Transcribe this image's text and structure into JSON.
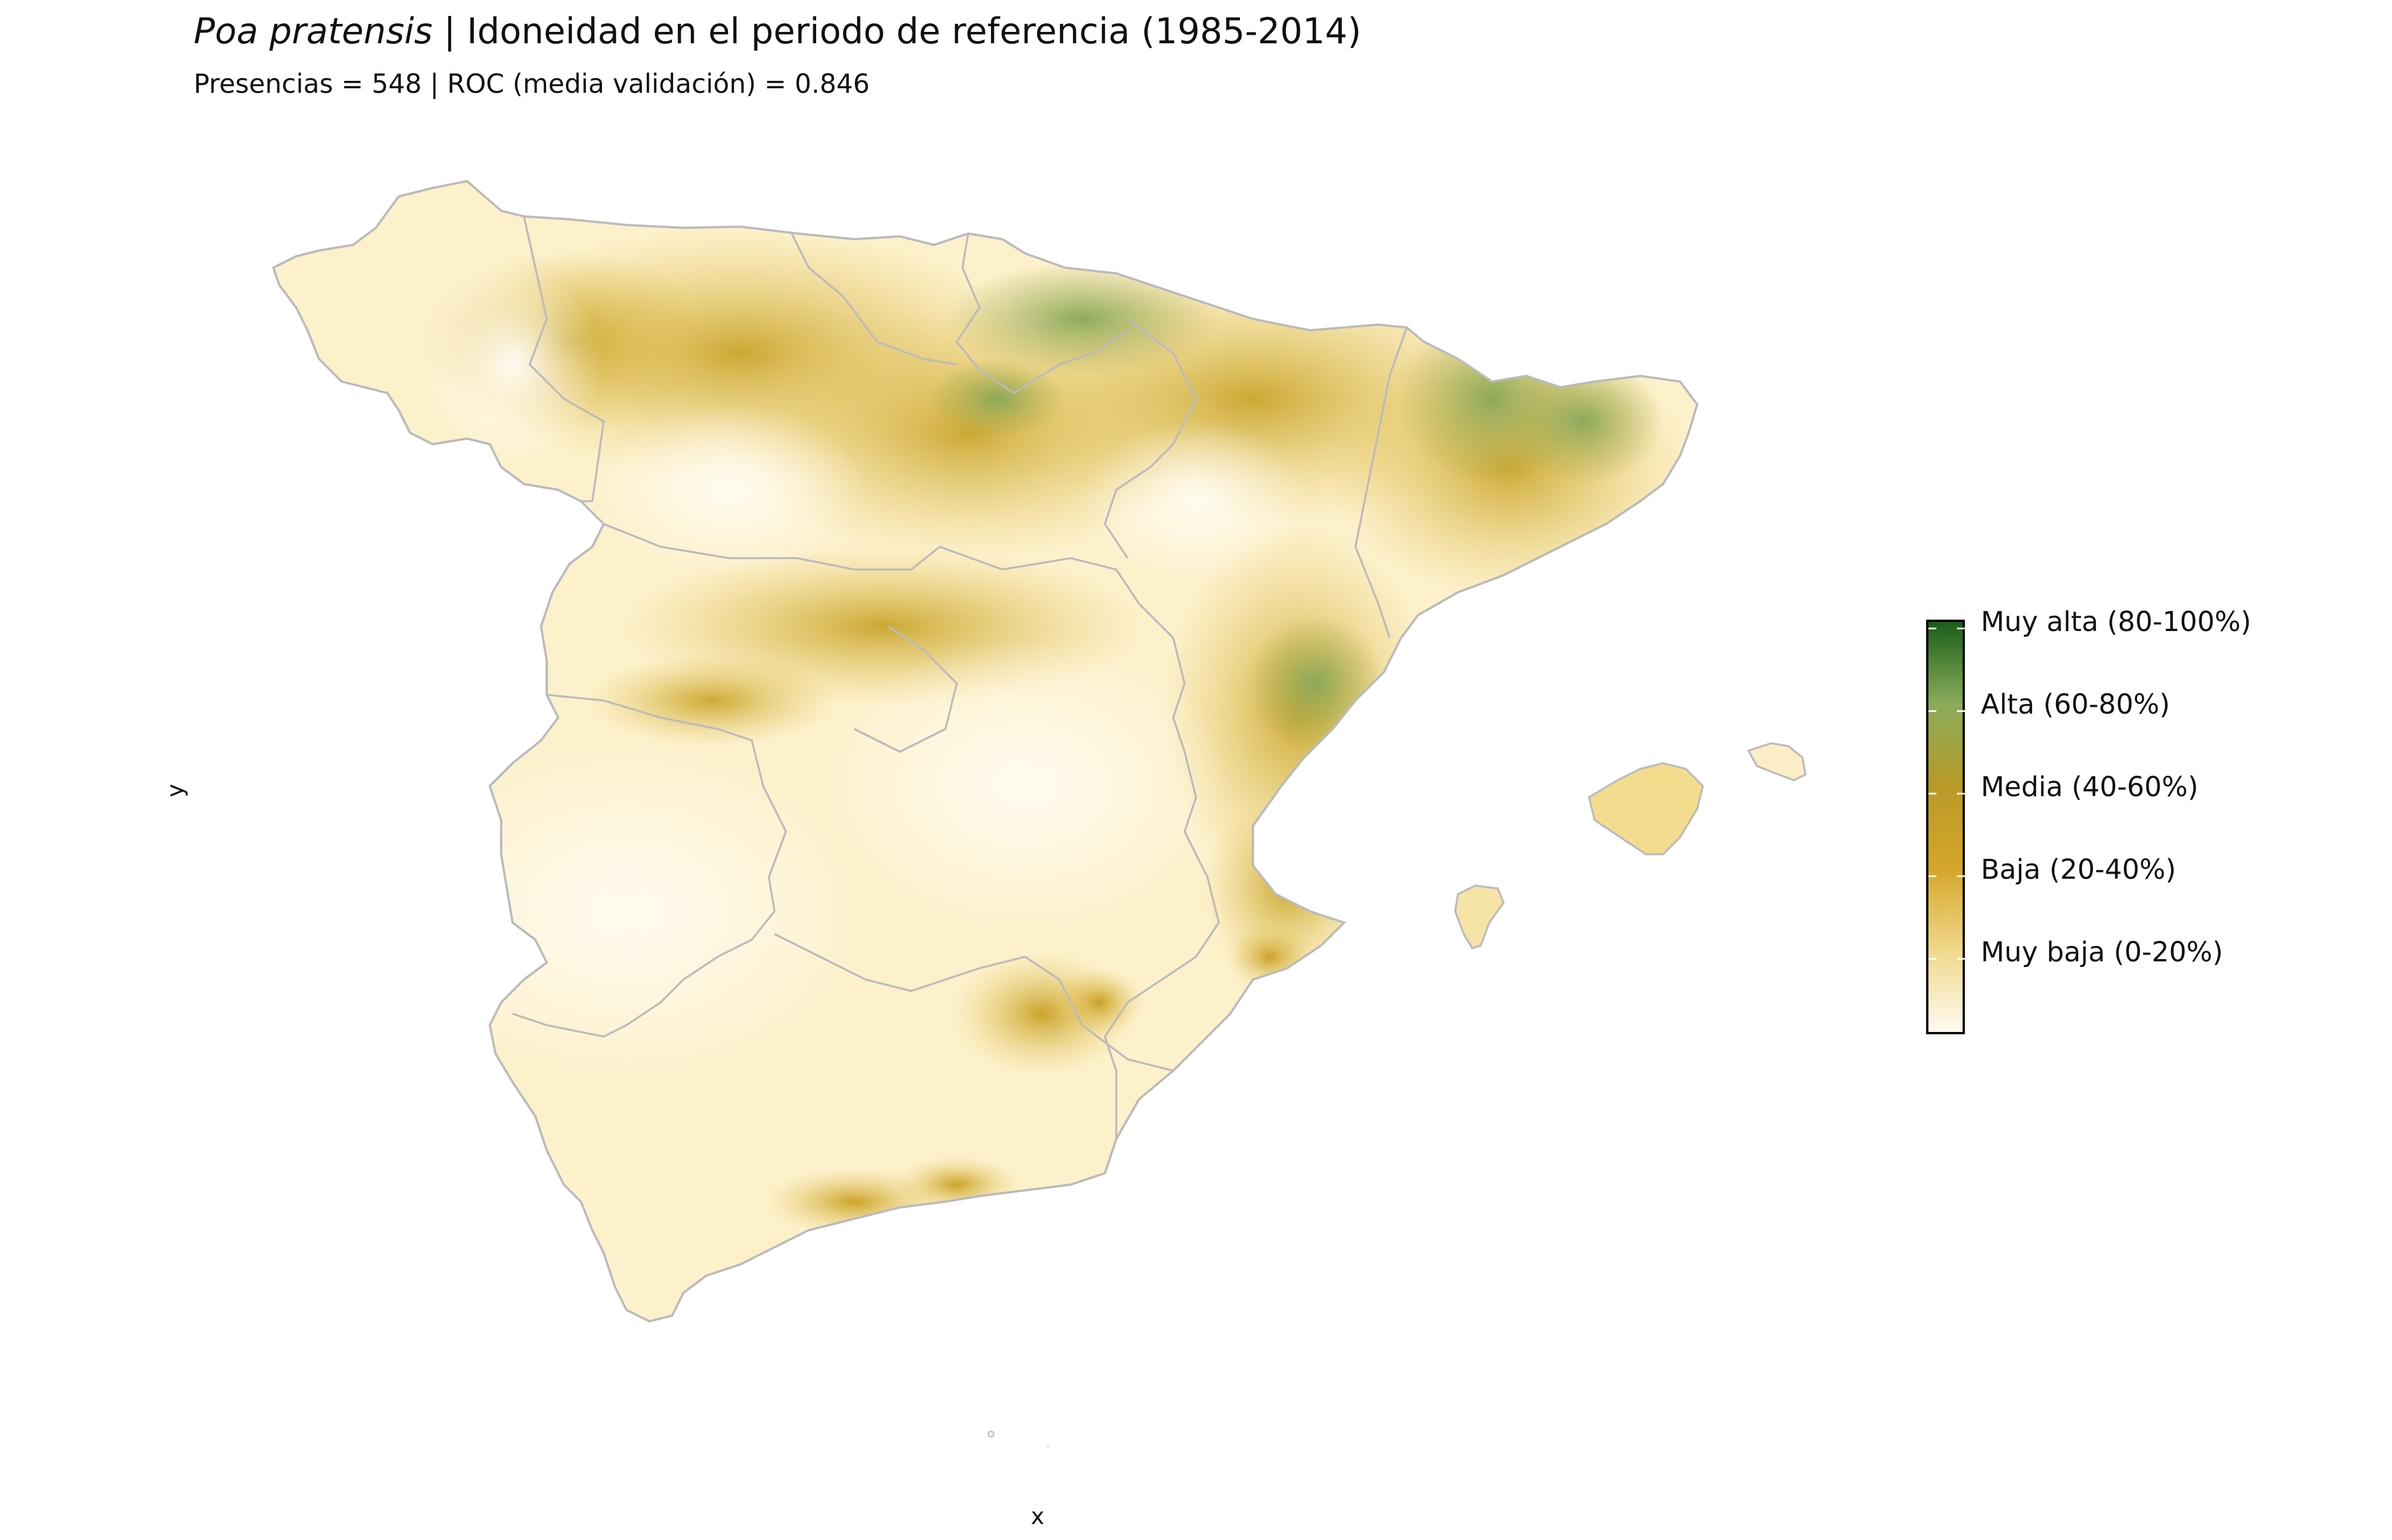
{
  "header": {
    "species": "Poa pratensis",
    "separator": " | ",
    "title_rest": "Idoneidad en el periodo de referencia (1985-2014)",
    "subtitle": "Presencias = 548  |  ROC (media validación) = 0.846"
  },
  "axes": {
    "x_label": "x",
    "y_label": "y"
  },
  "legend": {
    "labels": [
      "Muy alta (80-100%)",
      "Alta (60-80%)",
      "Media (40-60%)",
      "Baja (20-40%)",
      "Muy baja (0-20%)"
    ],
    "colors": [
      "#1a5e1a",
      "#8aac5a",
      "#b89a28",
      "#d4a62a",
      "#f0d88a",
      "#fffbf0"
    ]
  },
  "map": {
    "regions": [
      "Península Ibérica",
      "Islas Baleares"
    ],
    "border_color": "#bbbbbb"
  }
}
